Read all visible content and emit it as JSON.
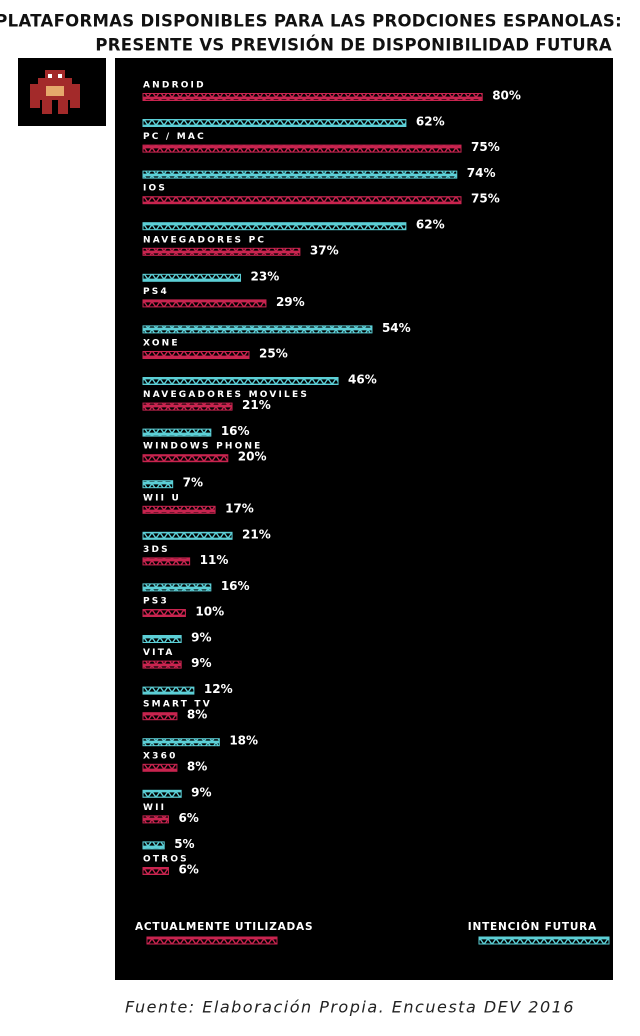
{
  "chart_data": {
    "type": "bar",
    "orientation": "horizontal",
    "title": [
      "PLATAFORMAS DISPONIBLES PARA LAS PRODCIONES ESPANOLAS:",
      "PRESENTE VS PREVISIÓN DE DISPONIBILIDAD FUTURA"
    ],
    "categories": [
      "ANDROID",
      "PC / MAC",
      "IOS",
      "NAVEGADORES PC",
      "PS4",
      "XONE",
      "NAVEGADORES MOVILES",
      "WINDOWS PHONE",
      "WII U",
      "3DS",
      "PS3",
      "VITA",
      "SMART TV",
      "X360",
      "WII",
      "OTROS"
    ],
    "series": [
      {
        "name": "ACTUALMENTE UTILIZADAS",
        "color": "#c8244f",
        "values": [
          80,
          75,
          75,
          37,
          29,
          25,
          21,
          20,
          17,
          11,
          10,
          9,
          8,
          8,
          6,
          6
        ],
        "value_labels": [
          "80%",
          "75%",
          "75%",
          "37%",
          "29%",
          "25%",
          "21%",
          "20%",
          "17%",
          "11%",
          "10%",
          "9%",
          "8%",
          "8%",
          "6%",
          "6%"
        ]
      },
      {
        "name": "INTENCIÓN FUTURA",
        "color": "#5ccfd6",
        "values": [
          62,
          74,
          62,
          23,
          54,
          46,
          16,
          7,
          21,
          16,
          9,
          12,
          18,
          9,
          5,
          null
        ],
        "value_labels": [
          "62%",
          "74%",
          "62%",
          "23%",
          "54%",
          "46%",
          "16%",
          "7%",
          "21%",
          "16%",
          "9%",
          "12%",
          "18%",
          "9%",
          "5%",
          null
        ]
      }
    ],
    "source": "Fuente: Elaboración Propia. Encuesta DEV 2016"
  }
}
